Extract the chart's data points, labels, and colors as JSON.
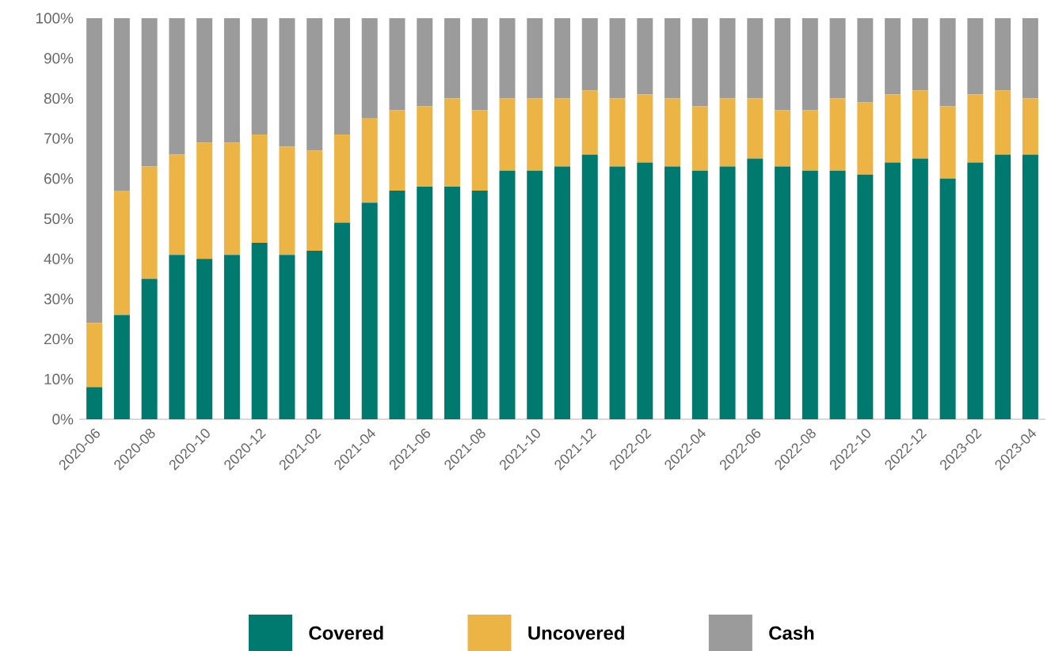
{
  "chart_data": {
    "type": "bar",
    "stacked": true,
    "legend": "bottom",
    "grid": false,
    "categories": [
      "2020-06",
      null,
      "2020-08",
      null,
      "2020-10",
      null,
      "2020-12",
      null,
      "2021-02",
      null,
      "2021-04",
      null,
      "2021-06",
      null,
      "2021-08",
      null,
      "2021-10",
      null,
      "2021-12",
      null,
      "2022-02",
      null,
      "2022-04",
      null,
      "2022-06",
      null,
      "2022-08",
      null,
      "2022-10",
      null,
      "2022-12",
      null,
      "2023-02",
      null,
      "2023-04"
    ],
    "ylim": [
      0,
      100
    ],
    "yticks": [
      {
        "value": 0,
        "label": "0%"
      },
      {
        "value": 10,
        "label": "10%"
      },
      {
        "value": 20,
        "label": "20%"
      },
      {
        "value": 30,
        "label": "30%"
      },
      {
        "value": 40,
        "label": "40%"
      },
      {
        "value": 50,
        "label": "50%"
      },
      {
        "value": 60,
        "label": "60%"
      },
      {
        "value": 70,
        "label": "70%"
      },
      {
        "value": 80,
        "label": "80%"
      },
      {
        "value": 90,
        "label": "90%"
      },
      {
        "value": 100,
        "label": "100%"
      }
    ],
    "series": [
      {
        "name": "Covered",
        "color": "#00796f",
        "values": [
          8,
          26,
          35,
          41,
          40,
          41,
          44,
          41,
          42,
          49,
          54,
          57,
          58,
          58,
          57,
          62,
          62,
          63,
          66,
          63,
          64,
          63,
          62,
          63,
          65,
          63,
          62,
          62,
          61,
          64,
          65,
          60,
          64,
          66,
          66
        ]
      },
      {
        "name": "Uncovered",
        "color": "#ecb444",
        "values": [
          16,
          31,
          28,
          25,
          29,
          28,
          27,
          27,
          25,
          22,
          21,
          20,
          20,
          22,
          20,
          18,
          18,
          17,
          16,
          17,
          17,
          17,
          16,
          17,
          15,
          14,
          15,
          18,
          18,
          17,
          17,
          18,
          17,
          16,
          14
        ]
      },
      {
        "name": "Cash",
        "color": "#9b9b9b",
        "values": [
          76,
          43,
          37,
          34,
          31,
          31,
          29,
          32,
          33,
          29,
          25,
          23,
          22,
          20,
          23,
          20,
          20,
          20,
          18,
          20,
          19,
          20,
          22,
          20,
          20,
          23,
          23,
          20,
          21,
          19,
          18,
          22,
          19,
          18,
          20
        ]
      }
    ]
  }
}
